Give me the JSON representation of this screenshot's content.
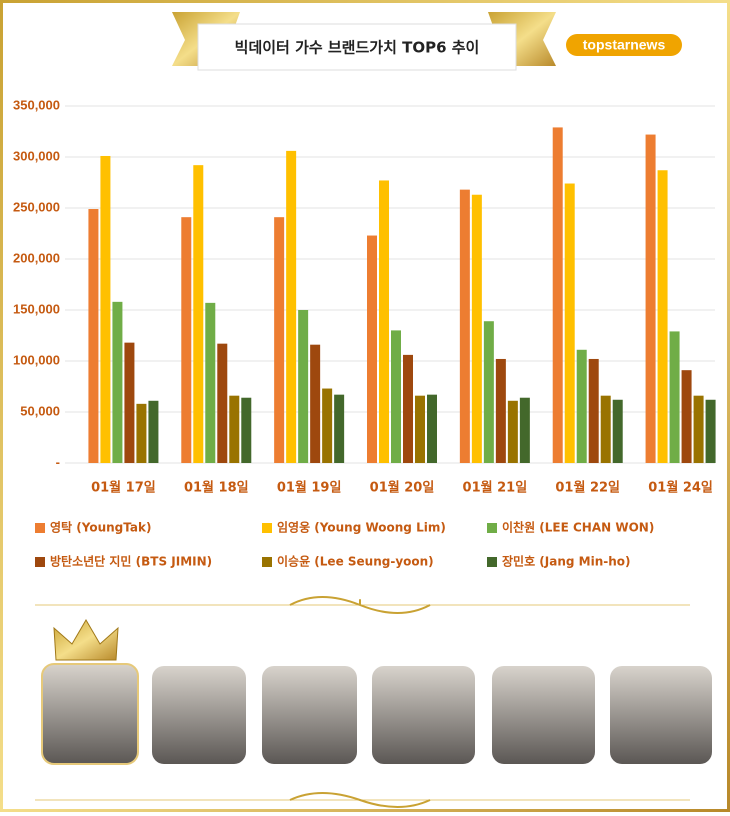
{
  "logo": "topstarnews",
  "chart_data": {
    "type": "bar",
    "title": "빅데이터 가수 브랜드가치 TOP6 추이",
    "categories": [
      "01월 17일",
      "01월 18일",
      "01월 19일",
      "01월 20일",
      "01월 21일",
      "01월 22일",
      "01월 24일"
    ],
    "series": [
      {
        "name": "영탁 (YoungTak)",
        "color": "#ed7d31",
        "values": [
          249000,
          241000,
          241000,
          223000,
          268000,
          329000,
          322000
        ]
      },
      {
        "name": "임영웅 (Young Woong Lim)",
        "color": "#ffc000",
        "values": [
          301000,
          292000,
          306000,
          277000,
          263000,
          274000,
          287000
        ]
      },
      {
        "name": "이찬원 (LEE CHAN WON)",
        "color": "#70ad47",
        "values": [
          158000,
          157000,
          150000,
          130000,
          139000,
          111000,
          129000
        ]
      },
      {
        "name": "방탄소년단 지민 (BTS JIMIN)",
        "color": "#9e480e",
        "values": [
          118000,
          117000,
          116000,
          106000,
          102000,
          102000,
          91000
        ]
      },
      {
        "name": "이승윤 (Lee Seung-yoon)",
        "color": "#997300",
        "values": [
          58000,
          66000,
          73000,
          66000,
          61000,
          66000,
          66000
        ]
      },
      {
        "name": "장민호 (Jang Min-ho)",
        "color": "#43682b",
        "values": [
          61000,
          64000,
          67000,
          67000,
          64000,
          62000,
          62000
        ]
      }
    ],
    "ylim": [
      0,
      350000
    ],
    "yticks": [
      {
        "value": 0,
        "label": "-"
      },
      {
        "value": 50000,
        "label": "50,000"
      },
      {
        "value": 100000,
        "label": "100,000"
      },
      {
        "value": 150000,
        "label": "150,000"
      },
      {
        "value": 200000,
        "label": "200,000"
      },
      {
        "value": 250000,
        "label": "250,000"
      },
      {
        "value": 300000,
        "label": "300,000"
      },
      {
        "value": 350000,
        "label": "350,000"
      }
    ],
    "grid": true,
    "legend": "bottom"
  }
}
